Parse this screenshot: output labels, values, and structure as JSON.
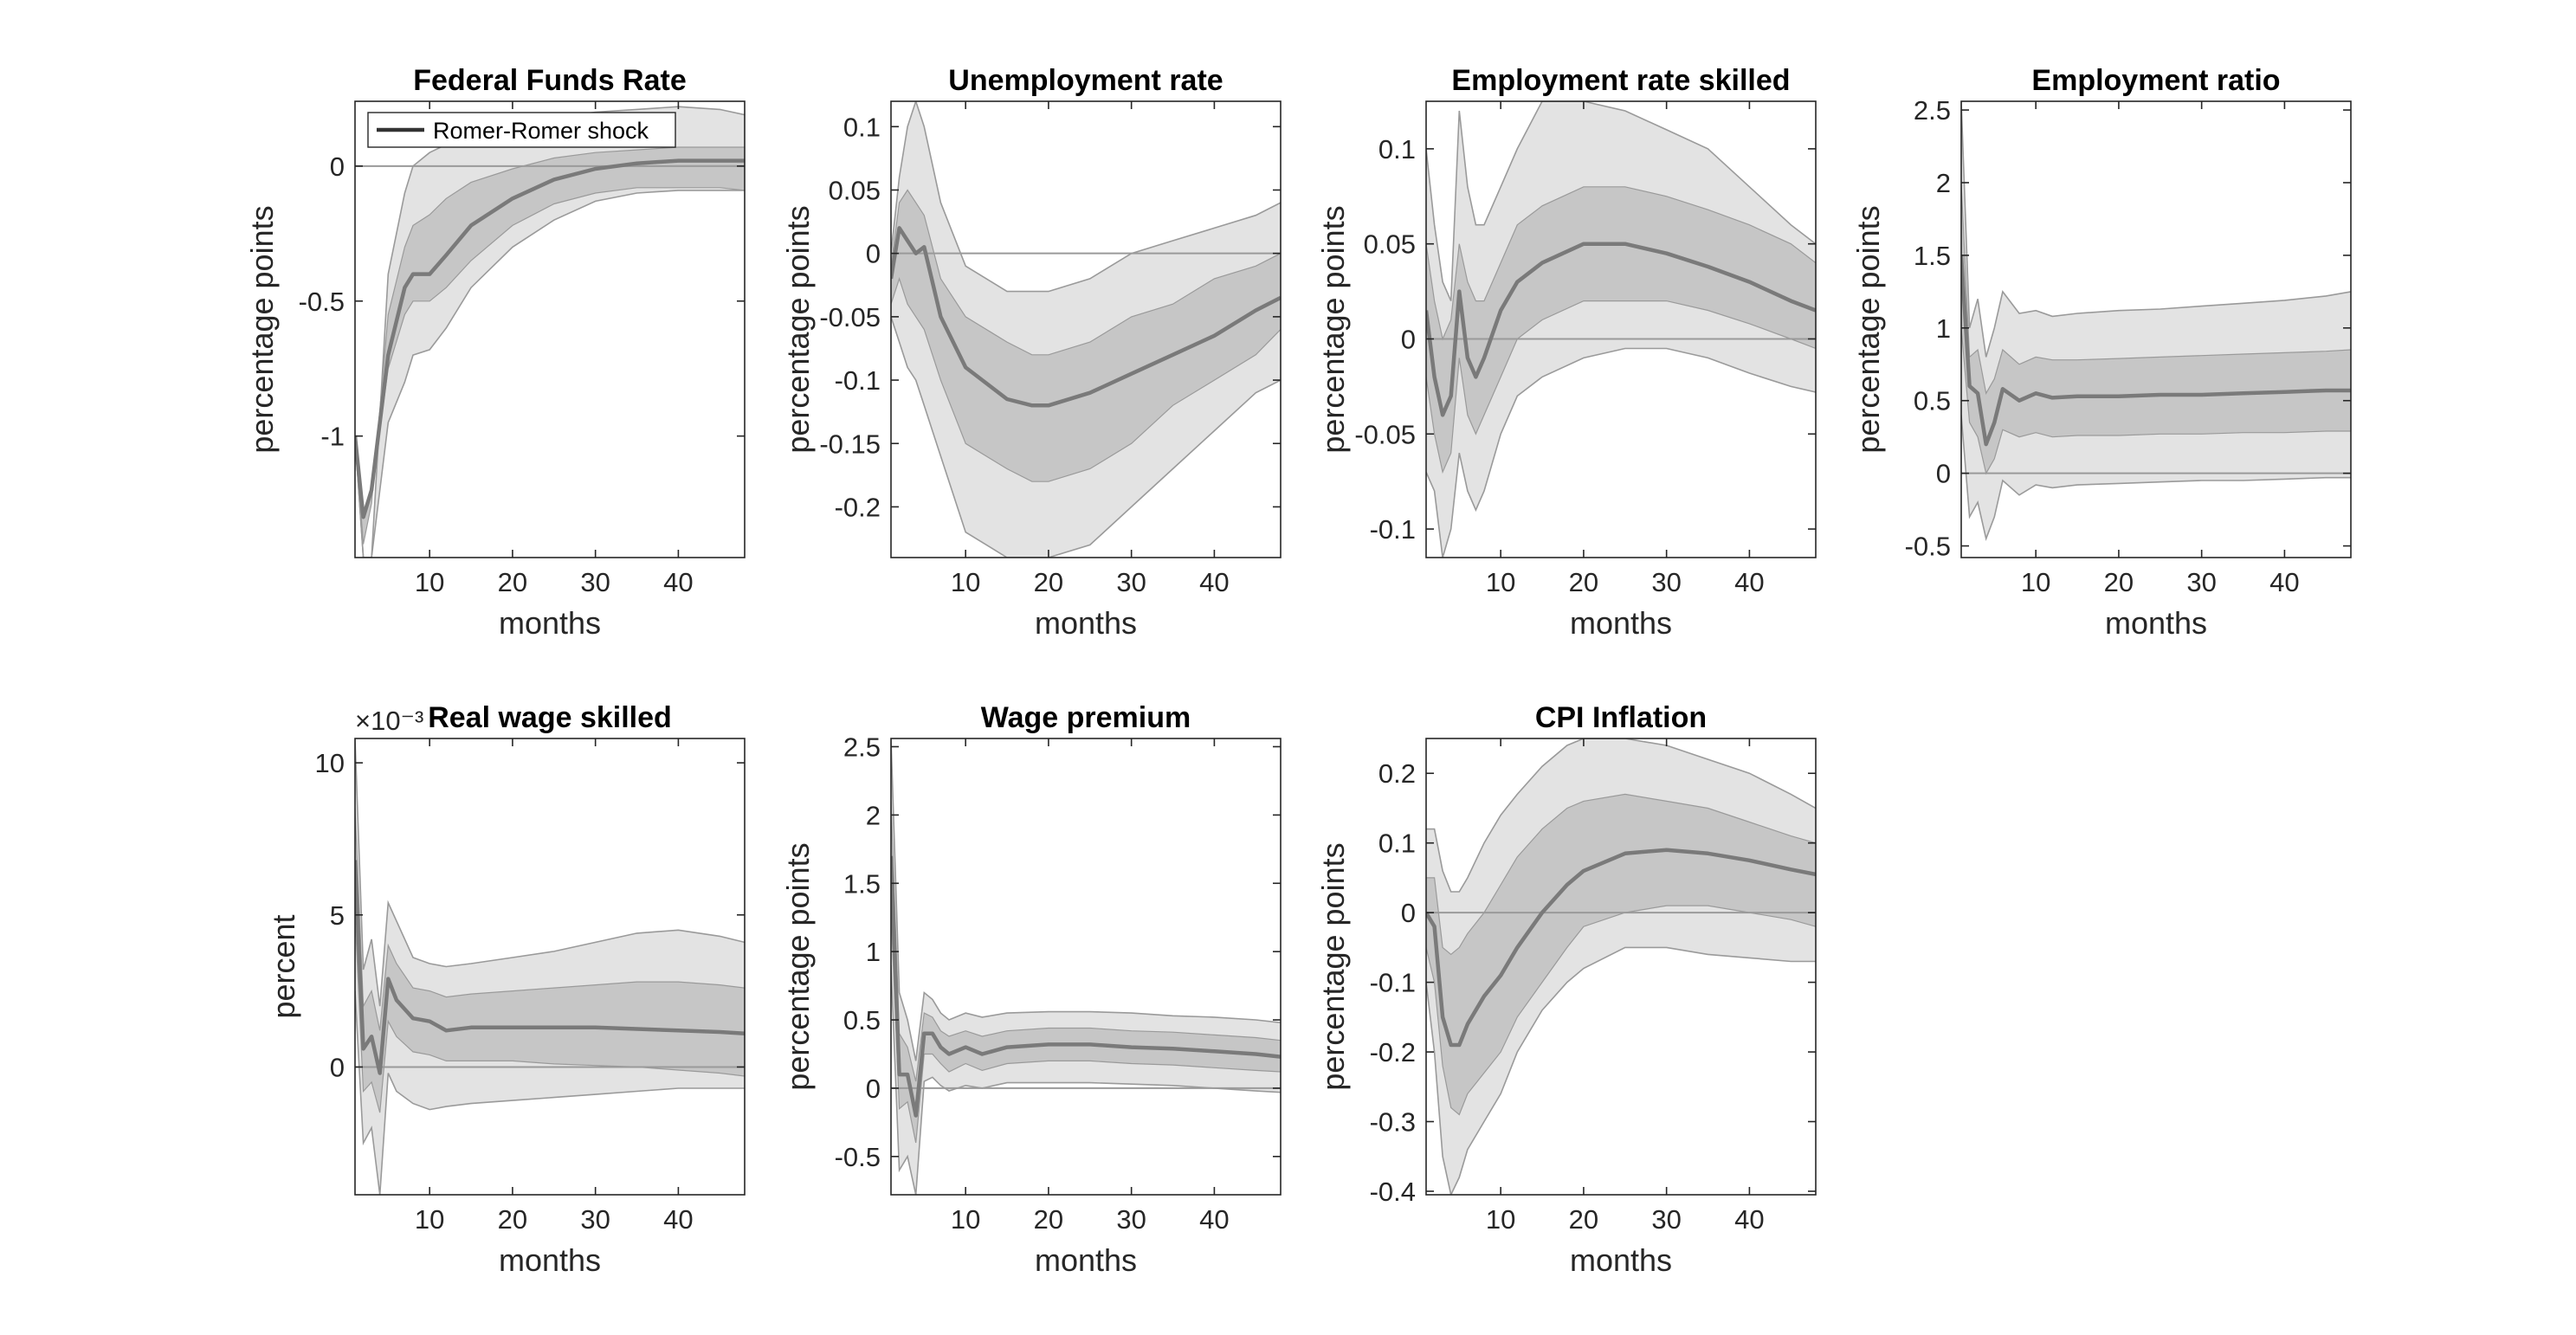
{
  "colors": {
    "outer_band": "#e3e3e3",
    "inner_band": "#c6c6c6",
    "band_edge": "#9a9a9a",
    "median_line": "#7a7a7a",
    "legend_line": "#333333",
    "zero_line": "#9a9a9a",
    "axis": "#262626"
  },
  "legend": {
    "label": "Romer-Romer shock"
  },
  "chart_data": [
    {
      "type": "line",
      "title": "Federal Funds Rate",
      "xlabel": "months",
      "ylabel": "percentage points",
      "xlim": [
        1,
        48
      ],
      "ylim": [
        -1.45,
        0.24
      ],
      "xticks": [
        10,
        20,
        30,
        40
      ],
      "xtick_labels": [
        "10",
        "20",
        "30",
        "40"
      ],
      "yticks": [
        -1,
        -0.5,
        0
      ],
      "ytick_labels": [
        "-1",
        "-0.5",
        "0"
      ],
      "exponent_label": "",
      "x": [
        1,
        2,
        3,
        5,
        7,
        8,
        10,
        12,
        15,
        20,
        25,
        30,
        35,
        40,
        45,
        48
      ],
      "series": [
        {
          "name": "Romer-Romer shock",
          "values": [
            -1.0,
            -1.3,
            -1.2,
            -0.7,
            -0.45,
            -0.4,
            -0.4,
            -0.33,
            -0.22,
            -0.12,
            -0.05,
            -0.01,
            0.01,
            0.02,
            0.02,
            0.02
          ]
        },
        {
          "values": [
            -1.0,
            -1.45,
            -1.45,
            -0.4,
            -0.1,
            0.0,
            0.05,
            0.08,
            0.11,
            0.15,
            0.18,
            0.2,
            0.21,
            0.22,
            0.21,
            0.19
          ]
        },
        {
          "values": [
            -1.0,
            -1.4,
            -1.25,
            -0.55,
            -0.3,
            -0.22,
            -0.18,
            -0.12,
            -0.06,
            -0.01,
            0.03,
            0.05,
            0.06,
            0.07,
            0.07,
            0.07
          ]
        },
        {
          "values": [
            -1.0,
            -1.28,
            -1.2,
            -0.75,
            -0.55,
            -0.5,
            -0.5,
            -0.45,
            -0.35,
            -0.22,
            -0.14,
            -0.1,
            -0.08,
            -0.08,
            -0.08,
            -0.09
          ]
        },
        {
          "values": [
            -1.0,
            -1.45,
            -1.45,
            -0.95,
            -0.8,
            -0.7,
            -0.68,
            -0.6,
            -0.45,
            -0.3,
            -0.2,
            -0.13,
            -0.1,
            -0.09,
            -0.09,
            -0.09
          ]
        }
      ]
    },
    {
      "type": "line",
      "title": "Unemployment rate",
      "xlabel": "months",
      "ylabel": "percentage points",
      "xlim": [
        1,
        48
      ],
      "ylim": [
        -0.24,
        0.12
      ],
      "xticks": [
        10,
        20,
        30,
        40
      ],
      "xtick_labels": [
        "10",
        "20",
        "30",
        "40"
      ],
      "yticks": [
        -0.2,
        -0.15,
        -0.1,
        -0.05,
        0,
        0.05,
        0.1
      ],
      "ytick_labels": [
        "-0.2",
        "-0.15",
        "-0.1",
        "-0.05",
        "0",
        "0.05",
        "0.1"
      ],
      "exponent_label": "",
      "x": [
        1,
        2,
        3,
        4,
        5,
        7,
        10,
        15,
        18,
        20,
        25,
        30,
        35,
        40,
        45,
        48
      ],
      "series": [
        {
          "values": [
            -0.02,
            0.02,
            0.01,
            0.0,
            0.005,
            -0.05,
            -0.09,
            -0.115,
            -0.12,
            -0.12,
            -0.11,
            -0.095,
            -0.08,
            -0.065,
            -0.045,
            -0.035
          ]
        },
        {
          "values": [
            0.0,
            0.06,
            0.1,
            0.12,
            0.1,
            0.04,
            -0.01,
            -0.03,
            -0.03,
            -0.03,
            -0.02,
            0.0,
            0.01,
            0.02,
            0.03,
            0.04
          ]
        },
        {
          "values": [
            -0.01,
            0.04,
            0.05,
            0.04,
            0.03,
            -0.02,
            -0.05,
            -0.07,
            -0.08,
            -0.08,
            -0.07,
            -0.05,
            -0.04,
            -0.02,
            -0.01,
            0.0
          ]
        },
        {
          "values": [
            -0.04,
            -0.02,
            -0.04,
            -0.05,
            -0.06,
            -0.1,
            -0.15,
            -0.17,
            -0.18,
            -0.18,
            -0.17,
            -0.15,
            -0.12,
            -0.1,
            -0.08,
            -0.06
          ]
        },
        {
          "values": [
            -0.05,
            -0.07,
            -0.09,
            -0.1,
            -0.12,
            -0.16,
            -0.22,
            -0.24,
            -0.24,
            -0.24,
            -0.23,
            -0.2,
            -0.17,
            -0.14,
            -0.11,
            -0.1
          ]
        }
      ]
    },
    {
      "type": "line",
      "title": "Employment rate skilled",
      "xlabel": "months",
      "ylabel": "percentage points",
      "xlim": [
        1,
        48
      ],
      "ylim": [
        -0.115,
        0.125
      ],
      "xticks": [
        10,
        20,
        30,
        40
      ],
      "xtick_labels": [
        "10",
        "20",
        "30",
        "40"
      ],
      "yticks": [
        -0.1,
        -0.05,
        0,
        0.05,
        0.1
      ],
      "ytick_labels": [
        "-0.1",
        "-0.05",
        "0",
        "0.05",
        "0.1"
      ],
      "exponent_label": "",
      "x": [
        1,
        2,
        3,
        4,
        5,
        6,
        7,
        8,
        10,
        12,
        15,
        20,
        25,
        30,
        35,
        40,
        45,
        48
      ],
      "series": [
        {
          "values": [
            0.015,
            -0.02,
            -0.04,
            -0.03,
            0.025,
            -0.01,
            -0.02,
            -0.01,
            0.015,
            0.03,
            0.04,
            0.05,
            0.05,
            0.045,
            0.038,
            0.03,
            0.02,
            0.015
          ]
        },
        {
          "values": [
            0.1,
            0.06,
            0.03,
            0.02,
            0.12,
            0.08,
            0.06,
            0.06,
            0.08,
            0.1,
            0.125,
            0.125,
            0.12,
            0.11,
            0.1,
            0.08,
            0.06,
            0.05
          ]
        },
        {
          "values": [
            0.05,
            0.02,
            0.0,
            0.01,
            0.05,
            0.03,
            0.02,
            0.02,
            0.04,
            0.06,
            0.07,
            0.08,
            0.08,
            0.075,
            0.068,
            0.06,
            0.05,
            0.04
          ]
        },
        {
          "values": [
            -0.02,
            -0.05,
            -0.07,
            -0.06,
            -0.01,
            -0.04,
            -0.05,
            -0.04,
            -0.02,
            0.0,
            0.01,
            0.02,
            0.02,
            0.02,
            0.015,
            0.008,
            0.0,
            -0.005
          ]
        },
        {
          "values": [
            -0.07,
            -0.08,
            -0.115,
            -0.1,
            -0.06,
            -0.08,
            -0.09,
            -0.08,
            -0.05,
            -0.03,
            -0.02,
            -0.01,
            -0.005,
            -0.005,
            -0.01,
            -0.018,
            -0.025,
            -0.028
          ]
        }
      ]
    },
    {
      "type": "line",
      "title": "Employment ratio",
      "xlabel": "months",
      "ylabel": "percentage points",
      "xlim": [
        1,
        48
      ],
      "ylim": [
        -0.58,
        2.56
      ],
      "xticks": [
        10,
        20,
        30,
        40
      ],
      "xtick_labels": [
        "10",
        "20",
        "30",
        "40"
      ],
      "yticks": [
        -0.5,
        0,
        0.5,
        1,
        1.5,
        2,
        2.5
      ],
      "ytick_labels": [
        "-0.5",
        "0",
        "0.5",
        "1",
        "1.5",
        "2",
        "2.5"
      ],
      "exponent_label": "",
      "x": [
        1,
        2,
        3,
        4,
        5,
        6,
        8,
        10,
        12,
        15,
        20,
        25,
        30,
        35,
        40,
        45,
        48
      ],
      "series": [
        {
          "values": [
            1.5,
            0.6,
            0.55,
            0.2,
            0.35,
            0.58,
            0.5,
            0.55,
            0.52,
            0.53,
            0.53,
            0.54,
            0.54,
            0.55,
            0.56,
            0.57,
            0.57
          ]
        },
        {
          "values": [
            2.56,
            1.0,
            1.2,
            0.8,
            1.0,
            1.25,
            1.1,
            1.12,
            1.08,
            1.1,
            1.12,
            1.13,
            1.15,
            1.17,
            1.19,
            1.22,
            1.25
          ]
        },
        {
          "values": [
            2.0,
            0.8,
            0.85,
            0.55,
            0.65,
            0.85,
            0.75,
            0.8,
            0.78,
            0.78,
            0.79,
            0.8,
            0.81,
            0.82,
            0.83,
            0.84,
            0.85
          ]
        },
        {
          "values": [
            1.0,
            0.35,
            0.25,
            0.0,
            0.1,
            0.3,
            0.25,
            0.28,
            0.25,
            0.26,
            0.26,
            0.27,
            0.27,
            0.28,
            0.28,
            0.29,
            0.29
          ]
        },
        {
          "values": [
            0.4,
            -0.3,
            -0.2,
            -0.45,
            -0.3,
            -0.05,
            -0.15,
            -0.08,
            -0.1,
            -0.08,
            -0.07,
            -0.06,
            -0.05,
            -0.05,
            -0.04,
            -0.03,
            -0.03
          ]
        }
      ]
    },
    {
      "type": "line",
      "title": "Real wage skilled",
      "xlabel": "months",
      "ylabel": "percent",
      "xlim": [
        1,
        48
      ],
      "ylim": [
        -4.2,
        10.8
      ],
      "xticks": [
        10,
        20,
        30,
        40
      ],
      "xtick_labels": [
        "10",
        "20",
        "30",
        "40"
      ],
      "yticks": [
        0,
        5,
        10
      ],
      "ytick_labels": [
        "0",
        "5",
        "10"
      ],
      "exponent_label": "×10⁻³",
      "x": [
        1,
        2,
        3,
        4,
        5,
        6,
        8,
        10,
        12,
        15,
        20,
        25,
        30,
        35,
        40,
        45,
        48
      ],
      "series": [
        {
          "values": [
            6.8,
            0.6,
            1.0,
            -0.2,
            2.9,
            2.2,
            1.6,
            1.5,
            1.2,
            1.3,
            1.3,
            1.3,
            1.3,
            1.25,
            1.2,
            1.15,
            1.1
          ]
        },
        {
          "values": [
            10.8,
            3.2,
            4.2,
            2.0,
            5.4,
            4.8,
            3.6,
            3.4,
            3.3,
            3.4,
            3.6,
            3.8,
            4.1,
            4.4,
            4.5,
            4.3,
            4.1
          ]
        },
        {
          "values": [
            8.5,
            2.0,
            2.5,
            1.2,
            4.0,
            3.4,
            2.6,
            2.5,
            2.3,
            2.4,
            2.5,
            2.6,
            2.7,
            2.8,
            2.8,
            2.7,
            2.6
          ]
        },
        {
          "values": [
            5.0,
            -0.8,
            -0.5,
            -1.5,
            1.5,
            1.0,
            0.5,
            0.4,
            0.2,
            0.2,
            0.2,
            0.1,
            0.05,
            0.0,
            -0.1,
            -0.2,
            -0.3
          ]
        },
        {
          "values": [
            2.5,
            -2.5,
            -2.0,
            -4.2,
            -0.2,
            -0.8,
            -1.2,
            -1.4,
            -1.3,
            -1.2,
            -1.1,
            -1.0,
            -0.9,
            -0.8,
            -0.7,
            -0.7,
            -0.7
          ]
        }
      ]
    },
    {
      "type": "line",
      "title": "Wage premium",
      "xlabel": "months",
      "ylabel": "percentage points",
      "xlim": [
        1,
        48
      ],
      "ylim": [
        -0.78,
        2.56
      ],
      "xticks": [
        10,
        20,
        30,
        40
      ],
      "xtick_labels": [
        "10",
        "20",
        "30",
        "40"
      ],
      "yticks": [
        -0.5,
        0,
        0.5,
        1,
        1.5,
        2,
        2.5
      ],
      "ytick_labels": [
        "-0.5",
        "0",
        "0.5",
        "1",
        "1.5",
        "2",
        "2.5"
      ],
      "exponent_label": "",
      "x": [
        1,
        2,
        3,
        4,
        5,
        6,
        7,
        8,
        10,
        12,
        15,
        20,
        25,
        30,
        35,
        40,
        45,
        48
      ],
      "series": [
        {
          "values": [
            1.7,
            0.1,
            0.1,
            -0.2,
            0.4,
            0.4,
            0.3,
            0.25,
            0.3,
            0.25,
            0.3,
            0.32,
            0.32,
            0.3,
            0.29,
            0.27,
            0.25,
            0.23
          ]
        },
        {
          "values": [
            2.56,
            0.7,
            0.5,
            0.2,
            0.7,
            0.65,
            0.55,
            0.5,
            0.55,
            0.52,
            0.55,
            0.56,
            0.56,
            0.55,
            0.53,
            0.52,
            0.5,
            0.48
          ]
        },
        {
          "values": [
            2.1,
            0.4,
            0.3,
            0.05,
            0.55,
            0.52,
            0.42,
            0.38,
            0.42,
            0.38,
            0.42,
            0.44,
            0.44,
            0.42,
            0.41,
            0.39,
            0.37,
            0.35
          ]
        },
        {
          "values": [
            1.3,
            -0.15,
            -0.1,
            -0.4,
            0.25,
            0.25,
            0.18,
            0.12,
            0.18,
            0.13,
            0.18,
            0.2,
            0.2,
            0.18,
            0.17,
            0.15,
            0.13,
            0.12
          ]
        },
        {
          "values": [
            0.9,
            -0.6,
            -0.5,
            -0.78,
            0.05,
            0.08,
            0.02,
            -0.02,
            0.02,
            0.0,
            0.04,
            0.04,
            0.04,
            0.03,
            0.02,
            0.0,
            -0.02,
            -0.03
          ]
        }
      ]
    },
    {
      "type": "line",
      "title": "CPI Inflation",
      "xlabel": "months",
      "ylabel": "percentage points",
      "xlim": [
        1,
        48
      ],
      "ylim": [
        -0.405,
        0.25
      ],
      "xticks": [
        10,
        20,
        30,
        40
      ],
      "xtick_labels": [
        "10",
        "20",
        "30",
        "40"
      ],
      "yticks": [
        -0.4,
        -0.3,
        -0.2,
        -0.1,
        0,
        0.1,
        0.2
      ],
      "ytick_labels": [
        "-0.4",
        "-0.3",
        "-0.2",
        "-0.1",
        "0",
        "0.1",
        "0.2"
      ],
      "exponent_label": "",
      "x": [
        1,
        2,
        3,
        4,
        5,
        6,
        8,
        10,
        12,
        15,
        18,
        20,
        25,
        30,
        35,
        40,
        45,
        48
      ],
      "series": [
        {
          "values": [
            0.0,
            -0.02,
            -0.15,
            -0.19,
            -0.19,
            -0.16,
            -0.12,
            -0.09,
            -0.05,
            0.0,
            0.04,
            0.06,
            0.085,
            0.09,
            0.085,
            0.075,
            0.062,
            0.055
          ]
        },
        {
          "values": [
            0.12,
            0.12,
            0.06,
            0.03,
            0.03,
            0.05,
            0.1,
            0.14,
            0.17,
            0.21,
            0.24,
            0.25,
            0.25,
            0.24,
            0.22,
            0.2,
            0.17,
            0.15
          ]
        },
        {
          "values": [
            0.05,
            0.05,
            -0.05,
            -0.06,
            -0.05,
            -0.03,
            0.0,
            0.04,
            0.08,
            0.12,
            0.15,
            0.16,
            0.17,
            0.16,
            0.15,
            0.13,
            0.11,
            0.1
          ]
        },
        {
          "values": [
            -0.05,
            -0.1,
            -0.22,
            -0.28,
            -0.29,
            -0.26,
            -0.23,
            -0.2,
            -0.15,
            -0.1,
            -0.05,
            -0.02,
            0.0,
            0.01,
            0.01,
            0.0,
            -0.01,
            -0.02
          ]
        },
        {
          "values": [
            -0.1,
            -0.2,
            -0.35,
            -0.405,
            -0.38,
            -0.34,
            -0.3,
            -0.26,
            -0.2,
            -0.14,
            -0.1,
            -0.08,
            -0.05,
            -0.05,
            -0.06,
            -0.065,
            -0.07,
            -0.07
          ]
        }
      ]
    }
  ]
}
